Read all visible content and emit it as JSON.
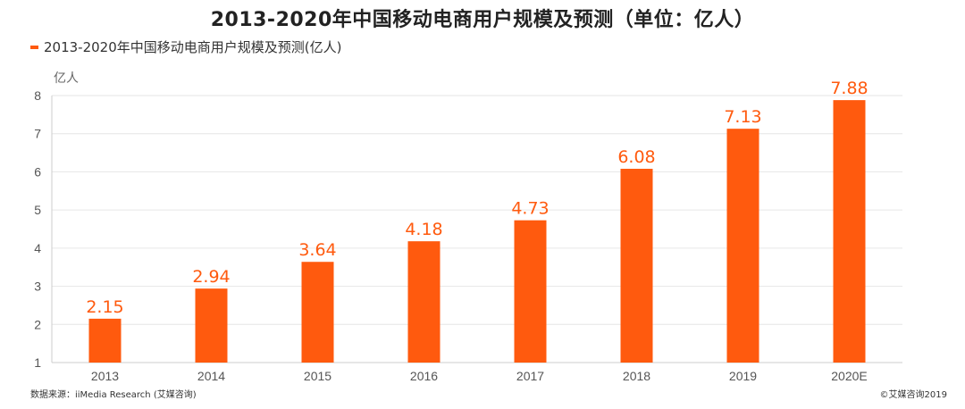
{
  "colors": {
    "bar": "#ff5a0e",
    "grid": "#e6e6e6",
    "axis": "#cccccc"
  },
  "chart_data": {
    "type": "bar",
    "title": "2013-2020年中国移动电商用户规模及预测（单位：亿人）",
    "legend": "2013-2020年中国移动电商用户规模及预测(亿人)",
    "ylabel": "亿人",
    "xlabel": "",
    "categories": [
      "2013",
      "2014",
      "2015",
      "2016",
      "2017",
      "2018",
      "2019",
      "2020E"
    ],
    "values": [
      2.15,
      2.94,
      3.64,
      4.18,
      4.73,
      6.08,
      7.13,
      7.88
    ],
    "value_labels": [
      "2.15",
      "2.94",
      "3.64",
      "4.18",
      "4.73",
      "6.08",
      "7.13",
      "7.88"
    ],
    "ylim": [
      1,
      8
    ],
    "yticks": [
      "1",
      "2",
      "3",
      "4",
      "5",
      "6",
      "7",
      "8"
    ],
    "grid": true
  },
  "footer": {
    "source": "数据来源：iiMedia Research (艾媒咨询)",
    "copyright": "©艾媒咨询2019"
  }
}
